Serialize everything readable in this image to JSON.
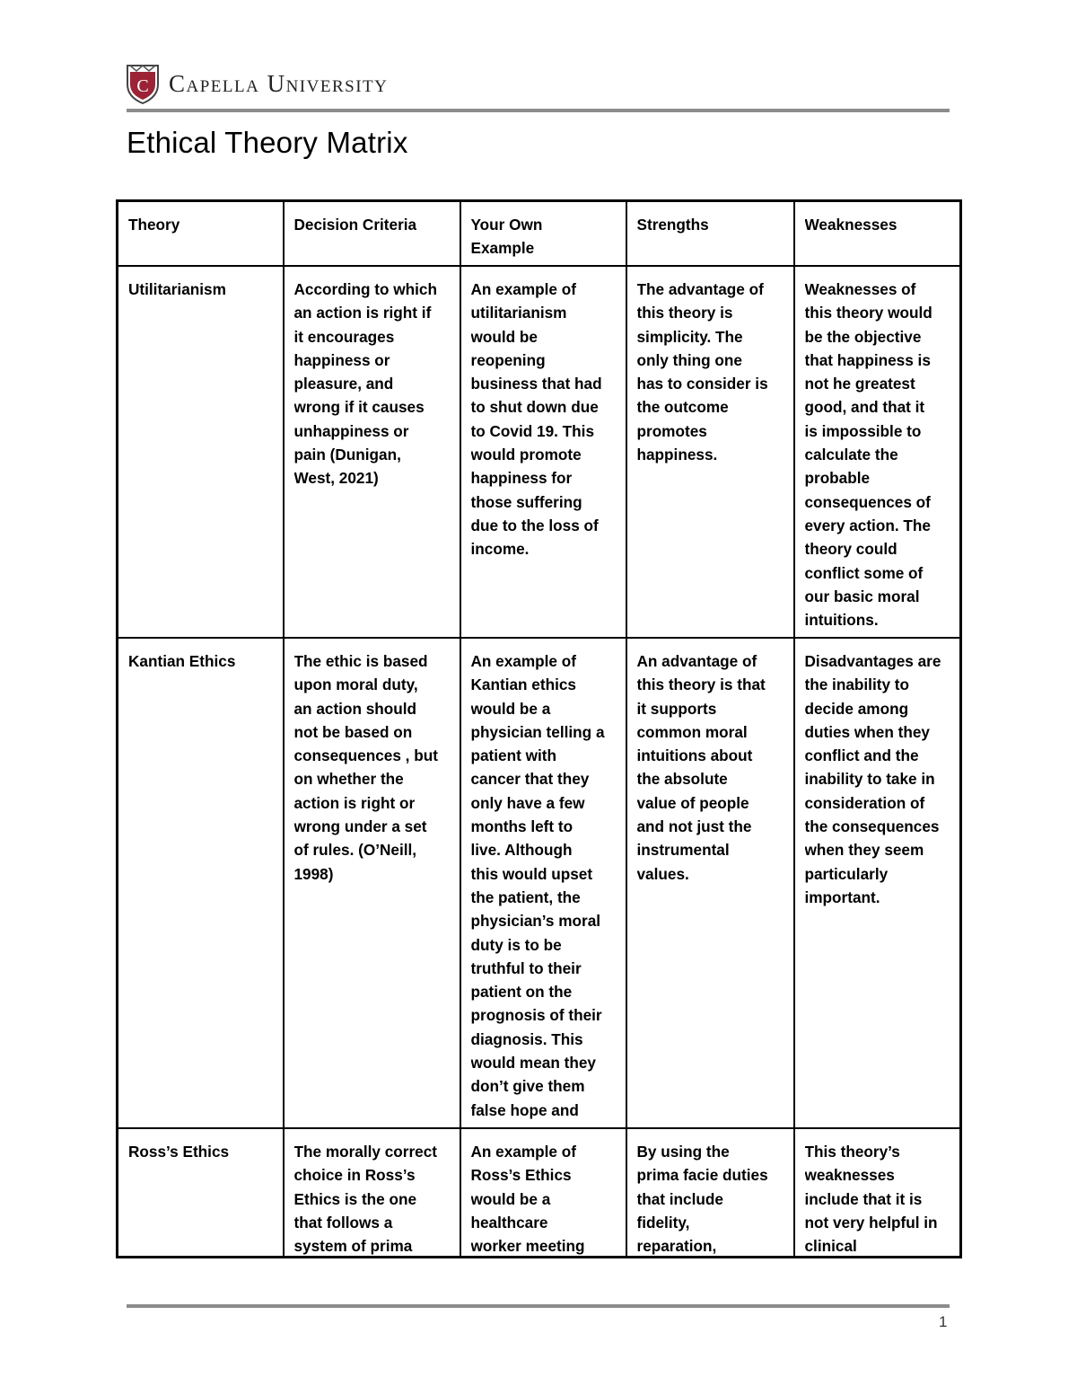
{
  "header": {
    "brand": "Capella University",
    "logo_letter": "C",
    "brand_color": "#9b2335"
  },
  "title": "Ethical Theory Matrix",
  "table": {
    "headers": [
      "Theory",
      "Decision Criteria",
      "Your Own\nExample",
      "Strengths",
      "Weaknesses"
    ],
    "rows": [
      [
        "Utilitarianism",
        "According to which\nan action is right if\nit encourages\nhappiness or\npleasure, and\nwrong if it causes\nunhappiness or\npain (Dunigan,\nWest, 2021)",
        "An example of\nutilitarianism\nwould be\nreopening\nbusiness that had\nto shut down due\nto Covid 19.  This\nwould promote\nhappiness for\nthose suffering\ndue to the loss of\nincome.",
        "The advantage of\nthis theory is\nsimplicity.  The\nonly thing one\nhas to consider is\nthe outcome\npromotes\nhappiness.",
        "Weaknesses of\nthis theory would\nbe the objective\nthat happiness is\nnot he greatest\ngood, and that it\nis impossible to\ncalculate the\nprobable\nconsequences of\nevery action.  The\ntheory could\nconflict some of\nour basic moral\nintuitions."
      ],
      [
        "Kantian Ethics",
        "The ethic is based\nupon moral duty,\nan action should\nnot be based on\nconsequences , but\non whether the\naction is right or\nwrong under a set\nof rules. (O’Neill,\n1998)",
        "An example of\nKantian ethics\nwould be a\nphysician telling a\npatient with\ncancer that they\nonly have a few\nmonths left to\nlive.  Although\nthis would upset\nthe patient, the\nphysician’s moral\nduty is to be\ntruthful to their\npatient on the\nprognosis of their\ndiagnosis.  This\nwould mean they\ndon’t give them\nfalse hope and",
        "An advantage of\nthis theory is that\nit supports\ncommon moral\nintuitions about\nthe absolute\nvalue of people\nand not just the\ninstrumental\nvalues.",
        "Disadvantages are\nthe inability to\ndecide among\nduties when they\nconflict and the\ninability to take in\nconsideration of\nthe consequences\nwhen they seem\nparticularly\nimportant."
      ],
      [
        "Ross’s Ethics",
        "The morally correct\nchoice in Ross’s\nEthics is the one\nthat follows a\nsystem of prima",
        "An example of\nRoss’s Ethics\nwould be a\nhealthcare\nworker meeting",
        "By using the\nprima facie duties\nthat include\nfidelity,\nreparation,",
        "This theory’s\nweaknesses\ninclude that it is\nnot very helpful in\nclinical"
      ]
    ]
  },
  "footer": {
    "page_number": "1"
  }
}
